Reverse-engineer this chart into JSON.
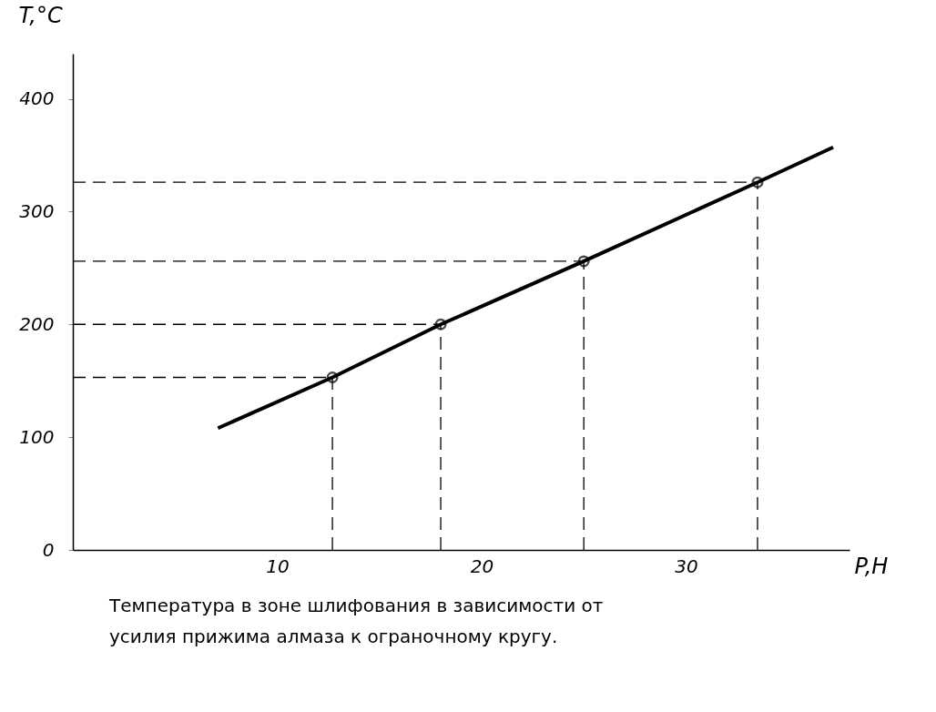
{
  "chart_data": {
    "type": "line",
    "xlabel": "P,H",
    "ylabel": "T,°C",
    "xlim": [
      0,
      38
    ],
    "ylim": [
      0,
      440
    ],
    "xticks": [
      10,
      20,
      30
    ],
    "yticks": [
      0,
      100,
      200,
      300,
      400
    ],
    "grid": false,
    "series": [
      {
        "color": "#000000",
        "x": [
          7.1,
          12.7,
          18,
          25,
          33.5,
          37.2
        ],
        "values": [
          108,
          153,
          200,
          256,
          326,
          357
        ],
        "marker": "none"
      },
      {
        "type": "scatter",
        "color": "#000000",
        "x": [
          12.7,
          18,
          25,
          33.5
        ],
        "values": [
          153,
          200,
          256,
          326
        ],
        "marker": "circle"
      }
    ],
    "ref_lines": [
      {
        "axis": "y",
        "value": 153,
        "line_style": "dashed"
      },
      {
        "axis": "y",
        "value": 200,
        "line_style": "dashed"
      },
      {
        "axis": "y",
        "value": 256,
        "line_style": "dashed"
      },
      {
        "axis": "y",
        "value": 326,
        "line_style": "dashed"
      },
      {
        "axis": "x",
        "value": 12.7,
        "line_style": "dashed"
      },
      {
        "axis": "x",
        "value": 18,
        "line_style": "dashed"
      },
      {
        "axis": "x",
        "value": 25,
        "line_style": "dashed"
      },
      {
        "axis": "x",
        "value": 33.5,
        "line_style": "dashed"
      }
    ],
    "annotations": [
      "Температура в зоне шлифования в зависимости от",
      "усилия прижима алмаза к ограночному кругу."
    ]
  }
}
